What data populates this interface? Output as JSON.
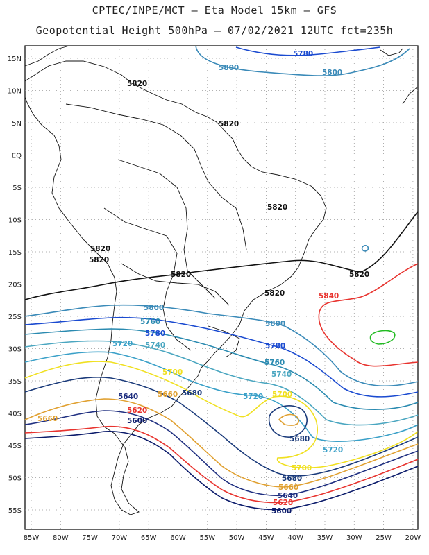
{
  "header": {
    "line1": "CPTEC/INPE/MCT –  Eta Model 15km – GFS",
    "line2": "Geopotential Height 500hPa – 07/02/2021 12UTC fct=235h"
  },
  "axes": {
    "lon_labels": [
      "85W",
      "80W",
      "75W",
      "70W",
      "65W",
      "60W",
      "55W",
      "50W",
      "45W",
      "40W",
      "35W",
      "30W",
      "25W",
      "20W"
    ],
    "lat_labels": [
      "15N",
      "10N",
      "5N",
      "EQ",
      "5S",
      "10S",
      "15S",
      "20S",
      "25S",
      "30S",
      "35S",
      "40S",
      "45S",
      "50S",
      "55S"
    ]
  },
  "colors": {
    "c5600": "#0a1a6a",
    "c5620": "#e8332e",
    "c5640": "#1f2f80",
    "c5660": "#e0a030",
    "c5680": "#1a3a7a",
    "c5700": "#f0e020",
    "c5720": "#3aa0c8",
    "c5740": "#4aa6c0",
    "c5760": "#2a8ab0",
    "c5780": "#1a4ad0",
    "c5800": "#3a8ab8",
    "c5820": "#111111",
    "c5840": "#e8332e",
    "c5860": "#22bb22"
  },
  "contour_labels": {
    "l5780_top": "5780",
    "l5800_top_a": "5800",
    "l5800_top_b": "5800",
    "l5820_a": "5820",
    "l5820_b": "5820",
    "l5820_c": "5820",
    "l5820_d": "5820",
    "l5820_e": "5820",
    "l5820_f": "5820",
    "l5820_g": "5820",
    "l5820_h": "5820",
    "l5840": "5840",
    "l5800_mid_a": "5800",
    "l5800_mid_b": "5800",
    "l5780_a": "5780",
    "l5780_b": "5780",
    "l5760_a": "5760",
    "l5760_b": "5760",
    "l5740_a": "5740",
    "l5740_b": "5740",
    "l5720_a": "5720",
    "l5720_b": "5720",
    "l5720_c": "5720",
    "l5700_a": "5700",
    "l5700_b": "5700",
    "l5700_c": "5700",
    "l5680_a": "5680",
    "l5680_b": "5680",
    "l5680_c": "5680",
    "l5660_a": "5660",
    "l5660_b": "5660",
    "l5660_c": "5660",
    "l5640_a": "5640",
    "l5640_b": "5640",
    "l5620_a": "5620",
    "l5620_b": "5620",
    "l5600_a": "5600",
    "l5600_b": "5600"
  }
}
